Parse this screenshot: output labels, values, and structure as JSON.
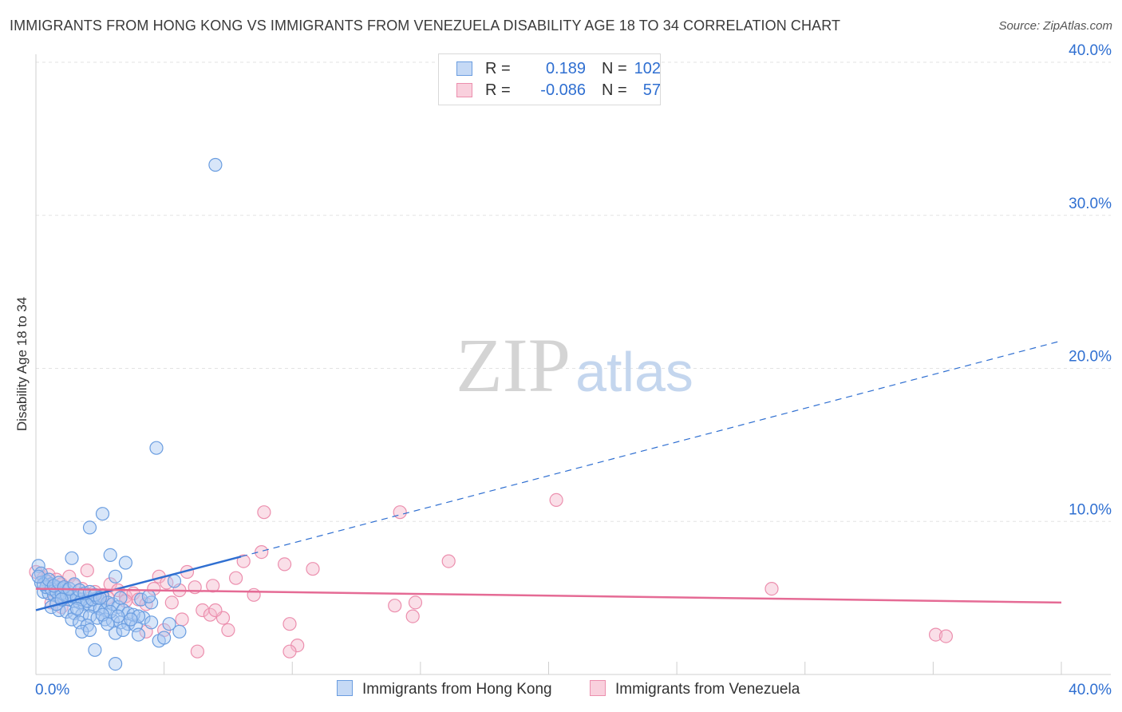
{
  "title": "IMMIGRANTS FROM HONG KONG VS IMMIGRANTS FROM VENEZUELA DISABILITY AGE 18 TO 34 CORRELATION CHART",
  "source": "Source: ZipAtlas.com",
  "watermark": {
    "zip": "ZIP",
    "atlas": "atlas"
  },
  "legend": {
    "r_label": "R =",
    "n_label": "N =",
    "series": [
      {
        "r": "0.189",
        "n": "102"
      },
      {
        "r": "-0.086",
        "n": "57"
      }
    ]
  },
  "colors": {
    "blue_fill": "#a9c8f2",
    "blue_stroke": "#6a9de0",
    "blue_line": "#2f6fd1",
    "pink_fill": "#f5b8cb",
    "pink_stroke": "#ec8fae",
    "pink_line": "#e56b95",
    "axis_text": "#2f6fd1",
    "grid": "#e3e3e3"
  },
  "chart_data": {
    "type": "scatter",
    "title": "IMMIGRANTS FROM HONG KONG VS IMMIGRANTS FROM VENEZUELA DISABILITY AGE 18 TO 34 CORRELATION CHART",
    "xlabel": "",
    "ylabel": "Disability Age 18 to 34",
    "xlim": [
      0,
      40
    ],
    "ylim": [
      0,
      40
    ],
    "x_tick_labels": [
      "0.0%",
      "40.0%"
    ],
    "y_ticks": [
      10,
      20,
      30,
      40
    ],
    "y_tick_labels": [
      "10.0%",
      "20.0%",
      "30.0%",
      "40.0%"
    ],
    "grid": true,
    "legend_position": "top-center",
    "series": [
      {
        "name": "Immigrants from Hong Kong",
        "color": "blue",
        "trend": {
          "x0": 0,
          "y0": 4.2,
          "x1": 8.0,
          "y1": 7.7,
          "dash_to_x": 40,
          "dash_to_y": 21.8
        },
        "points": [
          [
            7.0,
            33.3
          ],
          [
            4.7,
            14.8
          ],
          [
            2.6,
            10.5
          ],
          [
            2.1,
            9.6
          ],
          [
            1.4,
            7.6
          ],
          [
            2.9,
            7.8
          ],
          [
            3.5,
            7.3
          ],
          [
            0.1,
            7.1
          ],
          [
            0.2,
            6.6
          ],
          [
            0.4,
            6.1
          ],
          [
            0.6,
            5.9
          ],
          [
            0.8,
            5.7
          ],
          [
            1.0,
            5.6
          ],
          [
            1.2,
            5.5
          ],
          [
            0.3,
            5.4
          ],
          [
            0.5,
            5.3
          ],
          [
            0.7,
            5.2
          ],
          [
            0.9,
            5.1
          ],
          [
            1.1,
            5.0
          ],
          [
            1.3,
            4.9
          ],
          [
            1.5,
            4.8
          ],
          [
            1.7,
            4.7
          ],
          [
            1.9,
            4.6
          ],
          [
            2.1,
            4.5
          ],
          [
            2.3,
            4.4
          ],
          [
            2.5,
            4.3
          ],
          [
            2.7,
            4.2
          ],
          [
            0.6,
            4.4
          ],
          [
            0.9,
            4.2
          ],
          [
            1.2,
            4.1
          ],
          [
            1.5,
            4.0
          ],
          [
            1.8,
            3.9
          ],
          [
            2.1,
            3.8
          ],
          [
            2.4,
            3.7
          ],
          [
            2.7,
            3.6
          ],
          [
            3.0,
            3.5
          ],
          [
            3.3,
            3.4
          ],
          [
            3.6,
            3.3
          ],
          [
            3.9,
            3.2
          ],
          [
            4.2,
            3.7
          ],
          [
            4.5,
            3.4
          ],
          [
            1.4,
            3.6
          ],
          [
            1.7,
            3.4
          ],
          [
            2.0,
            3.2
          ],
          [
            1.8,
            2.8
          ],
          [
            2.1,
            2.9
          ],
          [
            3.1,
            2.7
          ],
          [
            3.4,
            2.9
          ],
          [
            4.0,
            2.6
          ],
          [
            4.8,
            2.2
          ],
          [
            5.0,
            2.4
          ],
          [
            5.6,
            2.8
          ],
          [
            2.3,
            1.6
          ],
          [
            3.1,
            0.7
          ],
          [
            0.2,
            6.0
          ],
          [
            0.4,
            5.7
          ],
          [
            0.6,
            5.6
          ],
          [
            0.8,
            5.4
          ],
          [
            1.0,
            5.3
          ],
          [
            1.2,
            5.2
          ],
          [
            1.4,
            5.1
          ],
          [
            1.6,
            5.0
          ],
          [
            1.8,
            4.9
          ],
          [
            2.0,
            4.8
          ],
          [
            2.2,
            4.9
          ],
          [
            2.4,
            5.0
          ],
          [
            2.6,
            5.1
          ],
          [
            2.8,
            4.7
          ],
          [
            3.0,
            4.6
          ],
          [
            3.2,
            4.4
          ],
          [
            3.4,
            4.2
          ],
          [
            3.6,
            4.0
          ],
          [
            3.8,
            3.9
          ],
          [
            4.0,
            3.8
          ],
          [
            0.3,
            5.9
          ],
          [
            0.5,
            6.2
          ],
          [
            0.7,
            5.8
          ],
          [
            0.9,
            6.0
          ],
          [
            1.1,
            5.7
          ],
          [
            1.3,
            5.6
          ],
          [
            1.5,
            5.9
          ],
          [
            1.7,
            5.5
          ],
          [
            1.9,
            5.3
          ],
          [
            2.1,
            5.4
          ],
          [
            2.3,
            5.2
          ],
          [
            2.5,
            5.0
          ],
          [
            3.1,
            6.4
          ],
          [
            3.3,
            5.0
          ],
          [
            4.1,
            4.9
          ],
          [
            4.5,
            4.7
          ],
          [
            5.4,
            6.1
          ],
          [
            5.2,
            3.3
          ],
          [
            1.6,
            4.3
          ],
          [
            2.9,
            4.1
          ],
          [
            3.7,
            3.6
          ],
          [
            0.8,
            4.6
          ],
          [
            1.0,
            4.9
          ],
          [
            2.6,
            3.9
          ],
          [
            2.8,
            3.3
          ],
          [
            3.2,
            3.8
          ],
          [
            0.1,
            6.4
          ],
          [
            4.4,
            5.1
          ]
        ]
      },
      {
        "name": "Immigrants from Venezuela",
        "color": "pink",
        "trend": {
          "x0": 0,
          "y0": 5.6,
          "x1": 40,
          "y1": 4.7
        },
        "points": [
          [
            0.0,
            6.7
          ],
          [
            0.3,
            6.3
          ],
          [
            0.5,
            6.5
          ],
          [
            0.8,
            6.2
          ],
          [
            1.0,
            5.9
          ],
          [
            1.3,
            6.4
          ],
          [
            1.5,
            5.8
          ],
          [
            1.8,
            5.6
          ],
          [
            2.0,
            6.8
          ],
          [
            2.3,
            5.4
          ],
          [
            2.6,
            5.2
          ],
          [
            2.9,
            5.9
          ],
          [
            3.2,
            5.5
          ],
          [
            3.5,
            5.1
          ],
          [
            3.8,
            5.3
          ],
          [
            4.0,
            4.9
          ],
          [
            4.3,
            4.6
          ],
          [
            4.6,
            5.6
          ],
          [
            4.8,
            6.4
          ],
          [
            5.1,
            6.0
          ],
          [
            5.3,
            4.7
          ],
          [
            5.6,
            5.5
          ],
          [
            5.9,
            6.7
          ],
          [
            6.2,
            5.7
          ],
          [
            6.5,
            4.2
          ],
          [
            6.8,
            3.9
          ],
          [
            7.3,
            3.7
          ],
          [
            7.8,
            6.3
          ],
          [
            8.1,
            7.4
          ],
          [
            8.8,
            8.0
          ],
          [
            8.5,
            5.2
          ],
          [
            9.7,
            7.2
          ],
          [
            9.9,
            3.3
          ],
          [
            10.8,
            6.9
          ],
          [
            10.2,
            1.9
          ],
          [
            9.9,
            1.5
          ],
          [
            14.2,
            10.6
          ],
          [
            14.0,
            4.5
          ],
          [
            14.8,
            4.7
          ],
          [
            14.7,
            3.8
          ],
          [
            16.1,
            7.4
          ],
          [
            20.3,
            11.4
          ],
          [
            28.7,
            5.6
          ],
          [
            35.1,
            2.6
          ],
          [
            35.5,
            2.5
          ],
          [
            8.9,
            10.6
          ],
          [
            6.3,
            1.5
          ],
          [
            7.0,
            4.2
          ],
          [
            7.5,
            2.9
          ],
          [
            5.0,
            2.9
          ],
          [
            4.3,
            2.8
          ],
          [
            3.5,
            4.8
          ],
          [
            2.8,
            5.0
          ],
          [
            1.0,
            4.4
          ],
          [
            0.6,
            4.7
          ],
          [
            5.7,
            3.6
          ],
          [
            6.9,
            5.8
          ]
        ]
      }
    ]
  }
}
